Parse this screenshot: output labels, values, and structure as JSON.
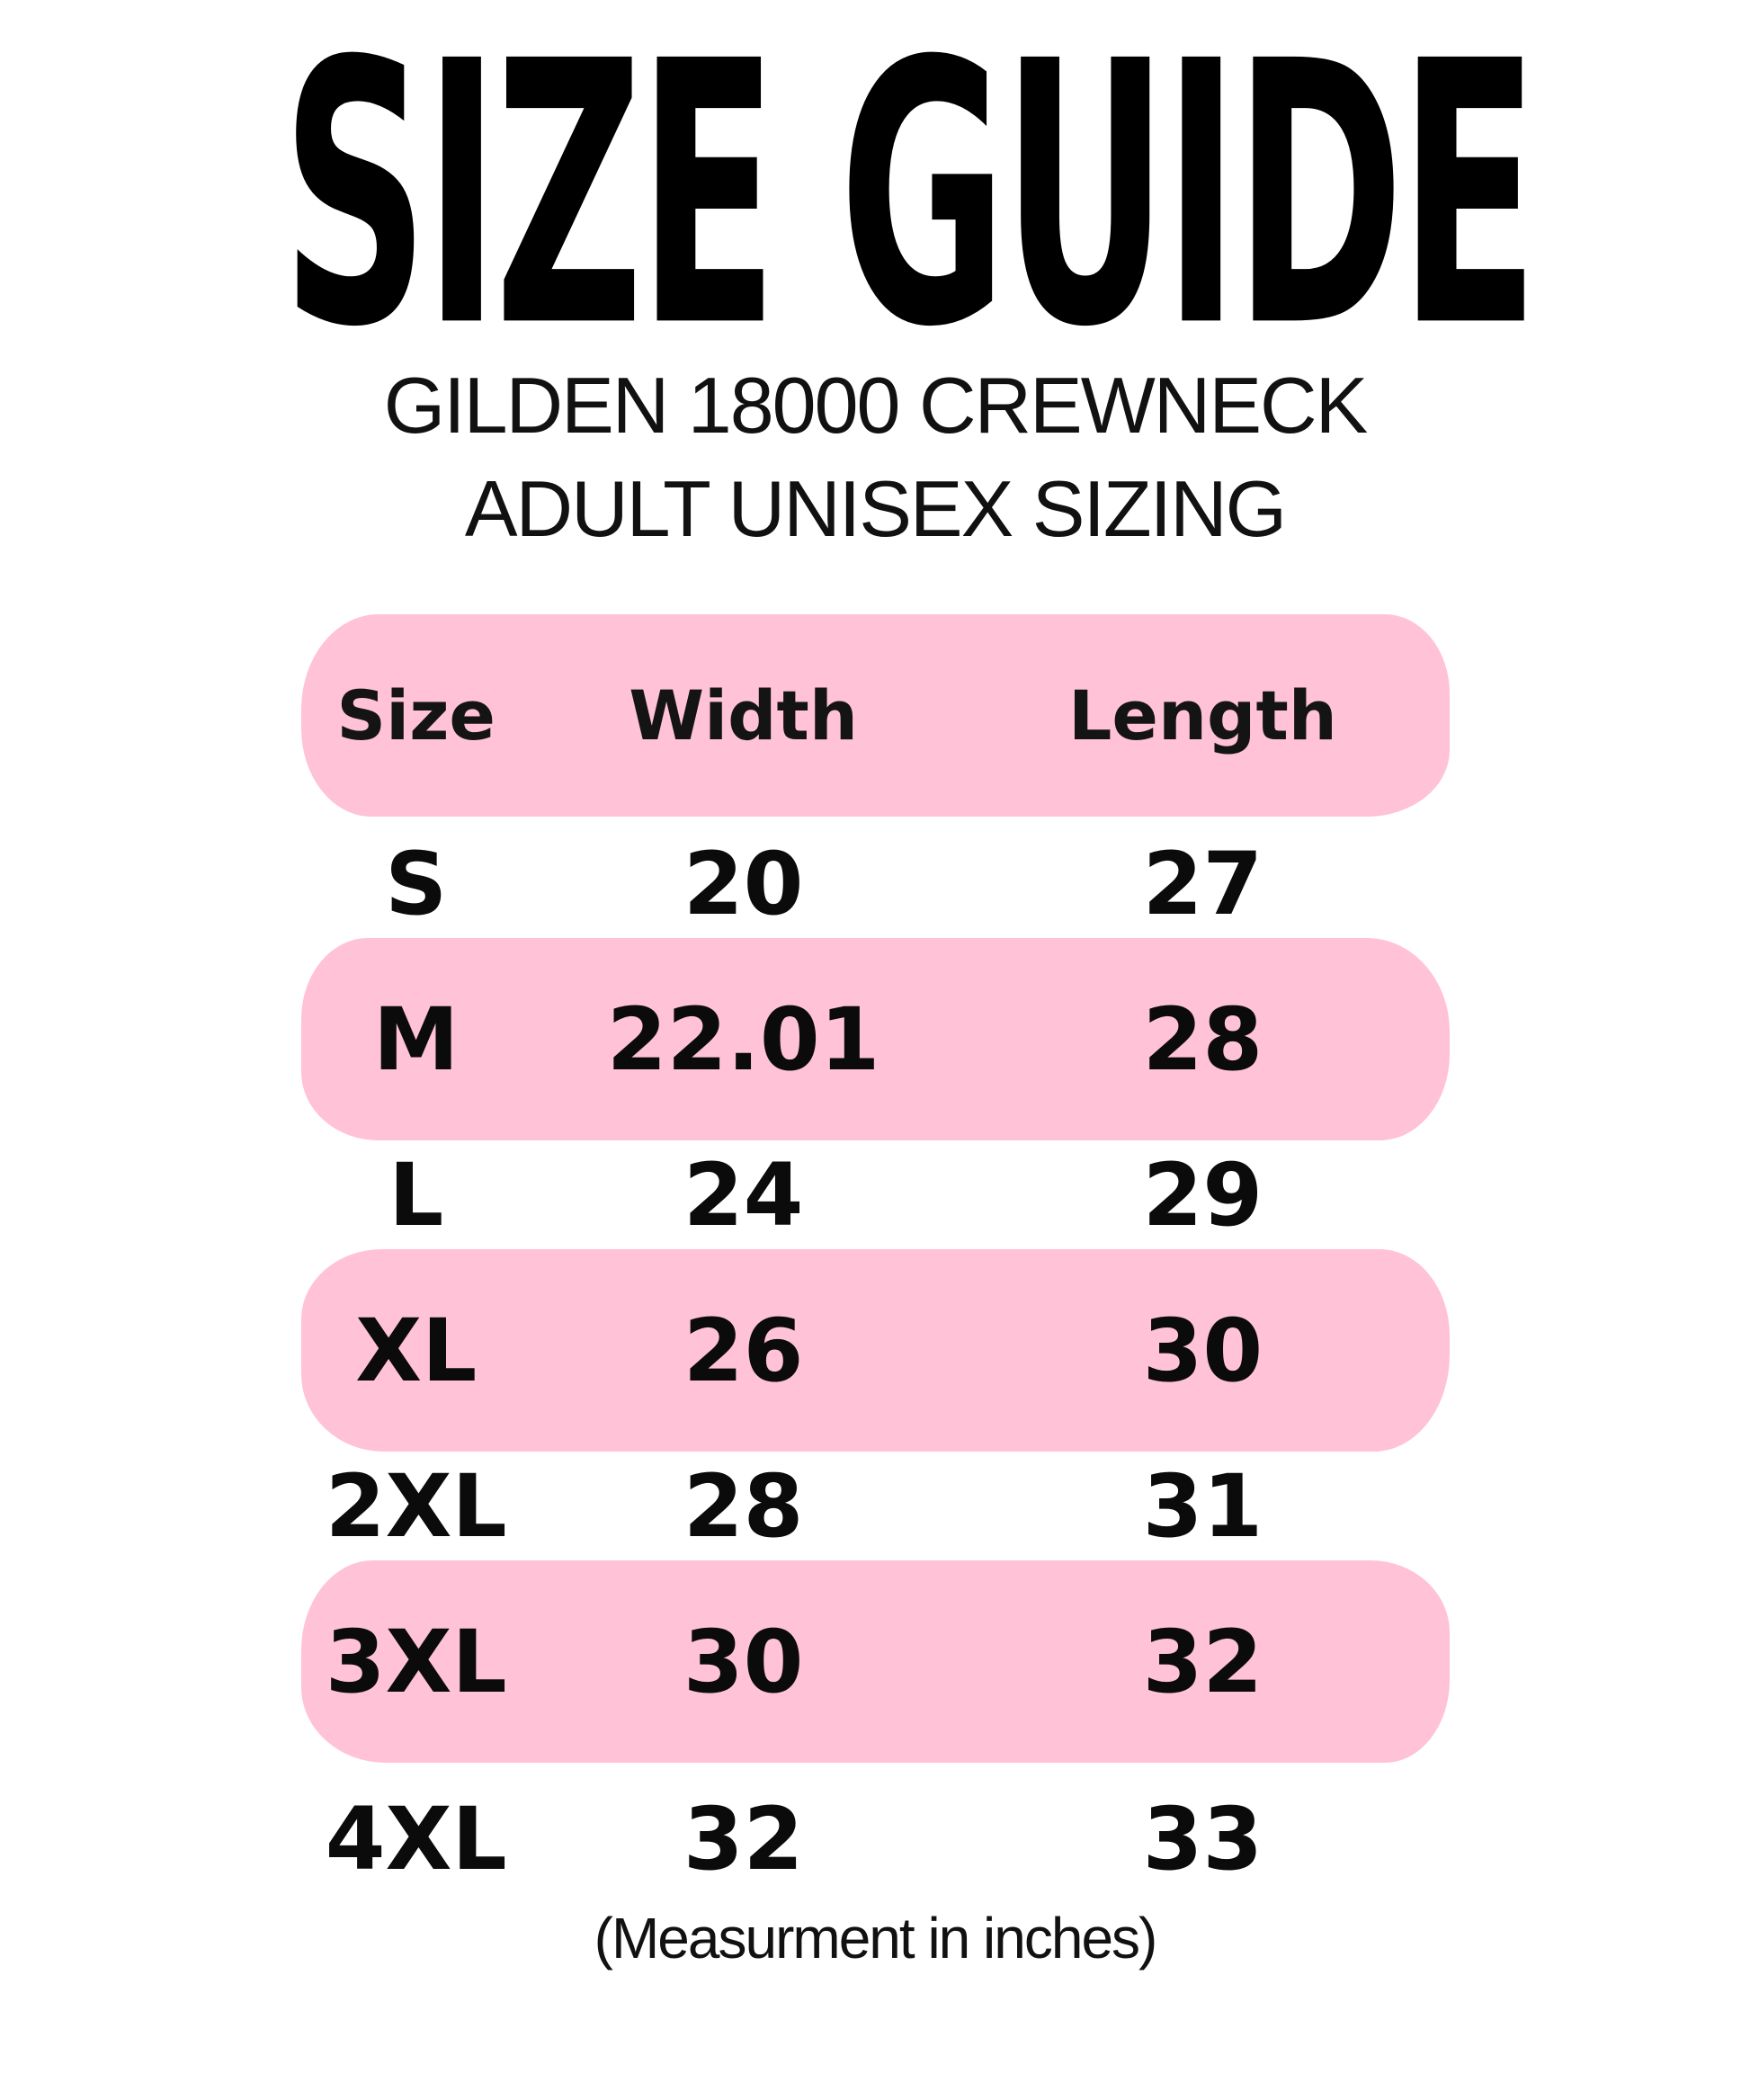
{
  "title": "SIZE GUIDE",
  "subtitle": {
    "line1": "GILDEN 18000 CREWNECK",
    "line2": "ADULT UNISEX SIZING"
  },
  "table": {
    "headers": {
      "size": "Size",
      "width": "Width",
      "length": "Length"
    },
    "rows": [
      {
        "size": "S",
        "width": "20",
        "length": "27",
        "highlighted": false
      },
      {
        "size": "M",
        "width": "22.01",
        "length": "28",
        "highlighted": true
      },
      {
        "size": "L",
        "width": "24",
        "length": "29",
        "highlighted": false
      },
      {
        "size": "XL",
        "width": "26",
        "length": "30",
        "highlighted": true
      },
      {
        "size": "2XL",
        "width": "28",
        "length": "31",
        "highlighted": false
      },
      {
        "size": "3XL",
        "width": "30",
        "length": "32",
        "highlighted": true
      },
      {
        "size": "4XL",
        "width": "32",
        "length": "33",
        "highlighted": false
      }
    ],
    "header_highlighted": true
  },
  "footer": {
    "note": "(Measurment in inches)"
  },
  "colors": {
    "highlight_pink": "#FFC2D6",
    "text_black": "#0B0B0B",
    "background": "#FFFFFF"
  }
}
